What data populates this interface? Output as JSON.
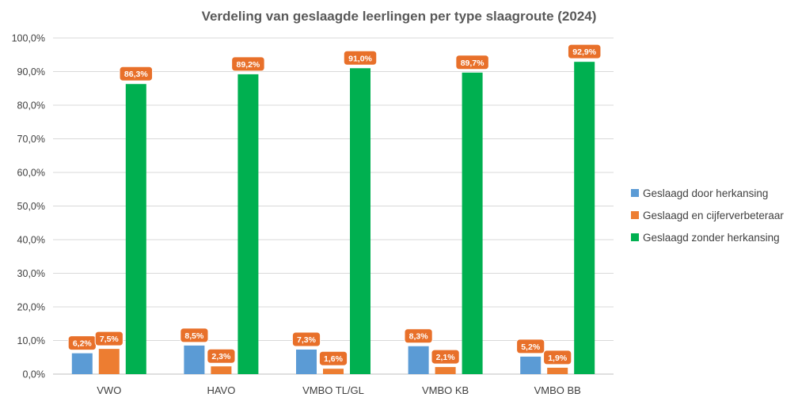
{
  "chart_data": {
    "type": "bar",
    "title": "Verdeling van geslaagde leerlingen per type slaagroute (2024)",
    "xlabel": "",
    "ylabel": "",
    "ylim": [
      0,
      100
    ],
    "y_ticks": [
      "0,0%",
      "10,0%",
      "20,0%",
      "30,0%",
      "40,0%",
      "50,0%",
      "60,0%",
      "70,0%",
      "80,0%",
      "90,0%",
      "100,0%"
    ],
    "categories": [
      "VWO",
      "HAVO",
      "VMBO TL/GL",
      "VMBO KB",
      "VMBO BB"
    ],
    "series": [
      {
        "name": "Geslaagd door herkansing",
        "color": "#5B9BD5",
        "values": [
          6.2,
          8.5,
          7.3,
          8.3,
          5.2
        ],
        "labels": [
          "6,2%",
          "8,5%",
          "7,3%",
          "8,3%",
          "5,2%"
        ]
      },
      {
        "name": "Geslaagd en cijferverbeteraar",
        "color": "#ED7D31",
        "values": [
          7.5,
          2.3,
          1.6,
          2.1,
          1.9
        ],
        "labels": [
          "7,5%",
          "2,3%",
          "1,6%",
          "2,1%",
          "1,9%"
        ]
      },
      {
        "name": "Geslaagd zonder herkansing",
        "color": "#00B050",
        "values": [
          86.3,
          89.2,
          91.0,
          89.7,
          92.9
        ],
        "labels": [
          "86,3%",
          "89,2%",
          "91,0%",
          "89,7%",
          "92,9%"
        ]
      }
    ],
    "data_label_color": "#E8702A",
    "grid": true,
    "legend_position": "right"
  }
}
